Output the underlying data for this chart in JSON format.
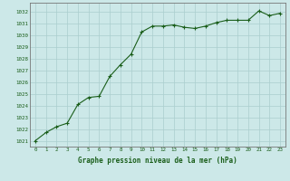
{
  "x": [
    0,
    1,
    2,
    3,
    4,
    5,
    6,
    7,
    8,
    9,
    10,
    11,
    12,
    13,
    14,
    15,
    16,
    17,
    18,
    19,
    20,
    21,
    22,
    23
  ],
  "y": [
    1021.0,
    1021.7,
    1022.2,
    1022.5,
    1024.1,
    1024.7,
    1024.8,
    1026.5,
    1027.5,
    1028.4,
    1030.3,
    1030.8,
    1030.8,
    1030.9,
    1030.7,
    1030.6,
    1030.8,
    1031.1,
    1031.3,
    1031.3,
    1031.3,
    1032.1,
    1031.7,
    1031.9
  ],
  "ylim_min": 1020.5,
  "ylim_max": 1032.8,
  "yticks": [
    1021,
    1022,
    1023,
    1024,
    1025,
    1026,
    1027,
    1028,
    1029,
    1030,
    1031,
    1032
  ],
  "xticks": [
    0,
    1,
    2,
    3,
    4,
    5,
    6,
    7,
    8,
    9,
    10,
    11,
    12,
    13,
    14,
    15,
    16,
    17,
    18,
    19,
    20,
    21,
    22,
    23
  ],
  "line_color": "#1a5e1a",
  "marker_color": "#1a5e1a",
  "bg_color": "#cce8e8",
  "grid_color": "#aacece",
  "xlabel": "Graphe pression niveau de la mer (hPa)",
  "xlabel_color": "#1a5e1a",
  "tick_color": "#1a5e1a",
  "spine_color": "#777777",
  "fig_bg": "#cce8e8"
}
